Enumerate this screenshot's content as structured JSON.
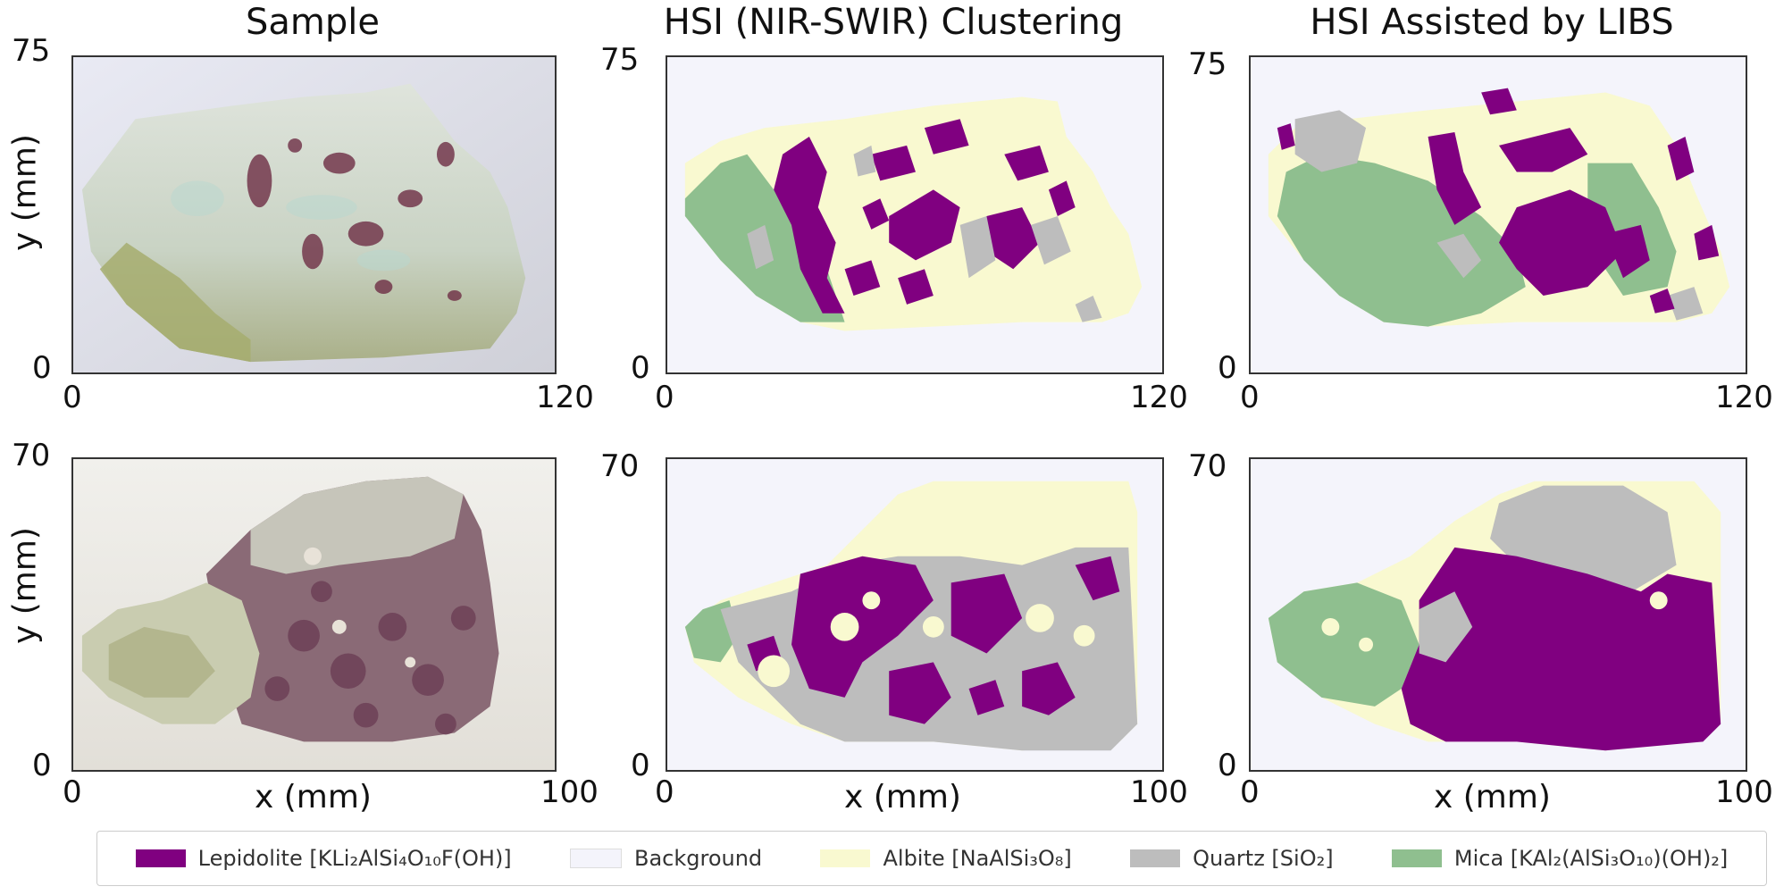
{
  "columns": [
    "Sample",
    "HSI (NIR-SWIR) Clustering",
    "HSI Assisted by LIBS"
  ],
  "row1": {
    "y_top": "75",
    "y_bottom": "0",
    "x_left": "0",
    "x_right": "120"
  },
  "row2": {
    "y_top": "70",
    "y_bottom": "0",
    "x_left": "0",
    "x_right": "100"
  },
  "ylabel": "y (mm)",
  "xlabel": "x (mm)",
  "legend": [
    {
      "label": "Lepidolite [KLi₂AlSi₄O₁₀F(OH)]",
      "color": "#800080"
    },
    {
      "label": "Background",
      "color": "#f4f4fb"
    },
    {
      "label": "Albite [NaAlSi₃O₈]",
      "color": "#f9f9d0"
    },
    {
      "label": "Quartz [SiO₂]",
      "color": "#bdbdbd"
    },
    {
      "label": "Mica [KAl₂(AlSi₃O₁₀)(OH)₂]",
      "color": "#8fbf8f"
    }
  ]
}
